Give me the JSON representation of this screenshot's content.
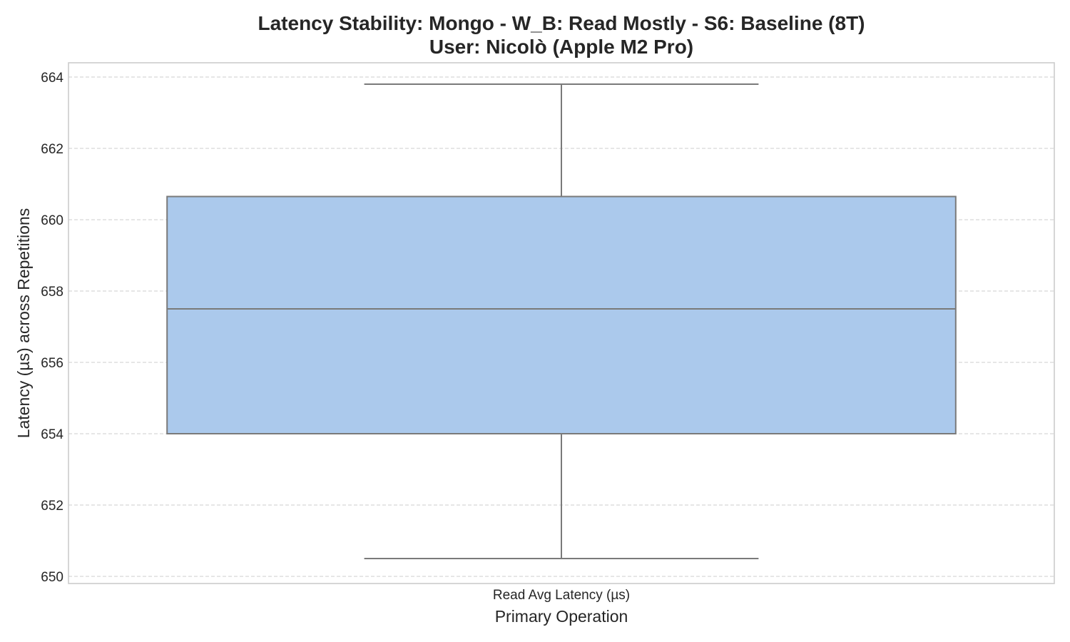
{
  "chart_data": {
    "type": "box",
    "title": "Latency Stability: Mongo - W_B: Read Mostly - S6: Baseline (8T)",
    "subtitle": "User: Nicolò (Apple M2 Pro)",
    "xlabel": "Primary Operation",
    "ylabel": "Latency (µs) across Repetitions",
    "categories": [
      "Read Avg Latency (µs)"
    ],
    "boxes": [
      {
        "category": "Read Avg Latency (µs)",
        "whisker_low": 650.5,
        "q1": 654.0,
        "median": 657.5,
        "q3": 660.65,
        "whisker_high": 663.8
      }
    ],
    "ylim": [
      649.8,
      664.4
    ],
    "yticks": [
      650,
      652,
      654,
      656,
      658,
      660,
      662,
      664
    ],
    "grid": "horizontal dashed",
    "colors": {
      "box_fill": "#abc9ec",
      "line": "#7a7a7a",
      "grid": "#cccccc",
      "frame": "#cccccc"
    }
  }
}
